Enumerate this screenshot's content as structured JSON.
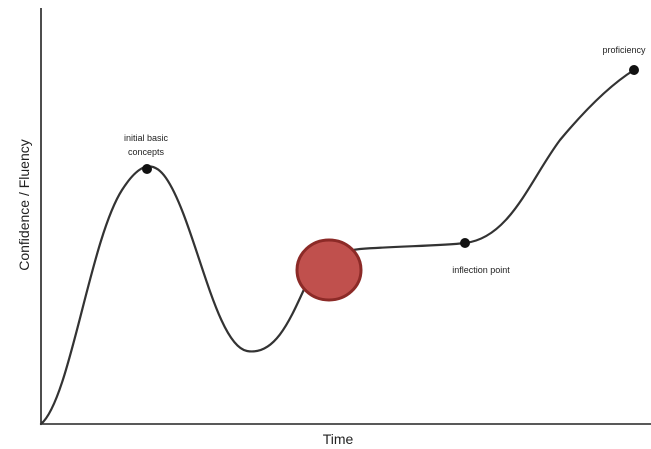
{
  "diagram": {
    "x_axis_label": "Time",
    "y_axis_label": "Confidence / Fluency",
    "annotations": {
      "initial": [
        "initial basic",
        "concepts"
      ],
      "inflection": "inflection point",
      "proficiency": "proficiency"
    },
    "colors": {
      "curve": "#333333",
      "marker_fill": "#c0504d",
      "marker_stroke": "#8c2a27"
    }
  }
}
